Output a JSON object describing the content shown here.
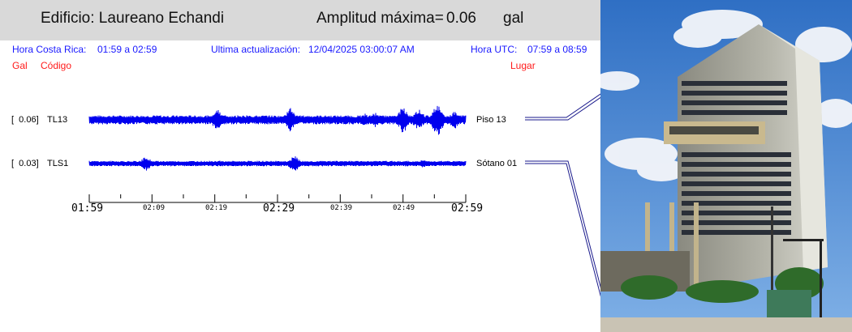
{
  "header": {
    "building": "Edificio: Laureano Echandi",
    "amplitude_label": "Amplitud máxima=",
    "amplitude_value": "0.06",
    "amplitude_unit": "gal"
  },
  "info": {
    "cr_time_label": "Hora Costa Rica:",
    "cr_time_value": "01:59 a 02:59",
    "update_label": "Ultima actualización:",
    "update_value": "12/04/2025 03:00:07 AM",
    "utc_label": "Hora UTC:",
    "utc_value": "07:59 a 08:59"
  },
  "columns": {
    "gal": "Gal",
    "code": "Código",
    "place": "Lugar"
  },
  "channels": [
    {
      "amp": "[  0.06]",
      "code": "TL13",
      "place": "Piso 13",
      "peak": 0.06
    },
    {
      "amp": "[  0.03]",
      "code": "TLS1",
      "place": "Sótano 01",
      "peak": 0.03
    }
  ],
  "time_axis": {
    "major": [
      "01:59",
      "02:29",
      "02:59"
    ],
    "minor": [
      "02:09",
      "02:19",
      "02:39",
      "02:49"
    ]
  },
  "colors": {
    "trace": "#0000ee",
    "info_text": "#1a1aff",
    "column_headers": "#ff1a1a",
    "header_bg": "#d9d9d9"
  }
}
